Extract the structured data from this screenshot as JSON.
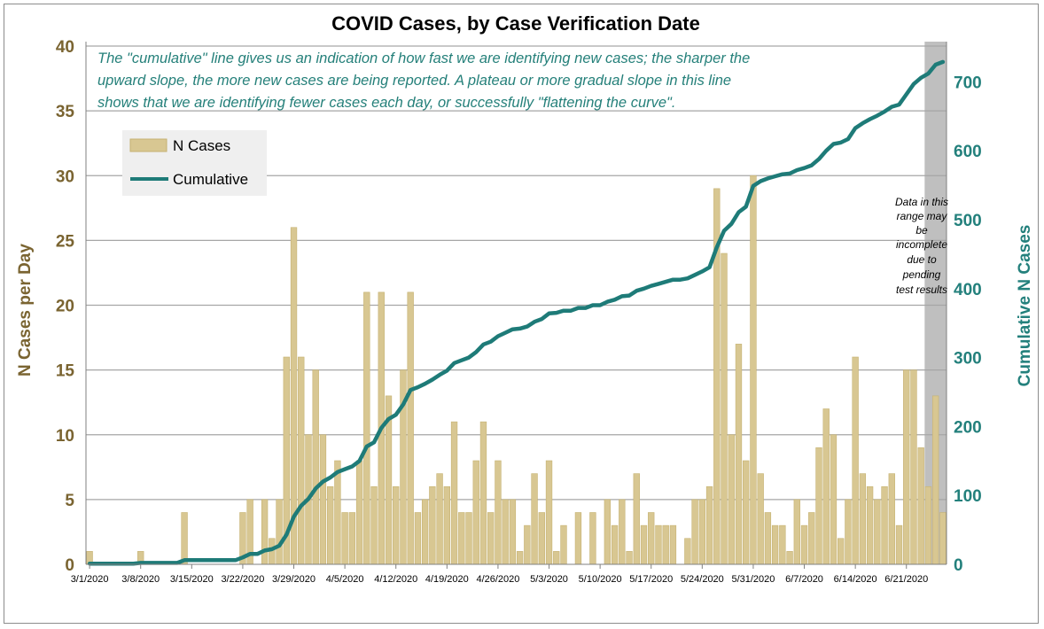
{
  "chart_data": {
    "type": "bar+line",
    "title": "COVID Cases, by Case Verification Date",
    "ylabel": "N Cases per Day",
    "y2label": "Cumulative N Cases",
    "xlabel": "",
    "ylim": [
      0,
      40
    ],
    "y2lim": [
      0,
      752
    ],
    "yticks": [
      "0",
      "5",
      "10",
      "15",
      "20",
      "25",
      "30",
      "35",
      "40"
    ],
    "y2ticks": [
      "0",
      "100",
      "200",
      "300",
      "400",
      "500",
      "600",
      "700"
    ],
    "xticks": [
      "3/1/2020",
      "3/8/2020",
      "3/15/2020",
      "3/22/2020",
      "3/29/2020",
      "4/5/2020",
      "4/12/2020",
      "4/19/2020",
      "4/26/2020",
      "5/3/2020",
      "5/10/2020",
      "5/17/2020",
      "5/24/2020",
      "5/31/2020",
      "6/7/2020",
      "6/14/2020",
      "6/21/2020"
    ],
    "grid": "horizontal",
    "legend_position": "top-left",
    "legend": [
      "N Cases",
      "Cumulative"
    ],
    "annotation_lines": [
      "The \"cumulative\" line gives  us an indication of how fast we are identifying new cases; the sharper the",
      "upward slope, the more new cases are being reported. A plateau or more gradual slope in this line",
      "shows that we are identifying fewer cases each day, or successfully \"flattening the curve\"."
    ],
    "shaded_note_lines": [
      "Data in this",
      "range  may",
      "be",
      "incomplete",
      "due to",
      "pending",
      "test results"
    ],
    "shaded_start_day": 115,
    "series": [
      {
        "name": "N Cases",
        "type": "bar",
        "values": [
          1,
          0,
          0,
          0,
          0,
          0,
          0,
          1,
          0,
          0,
          0,
          0,
          0,
          4,
          0,
          0,
          0,
          0,
          0,
          0,
          0,
          4,
          5,
          0,
          5,
          2,
          5,
          16,
          26,
          16,
          10,
          15,
          10,
          6,
          8,
          4,
          4,
          8,
          21,
          6,
          21,
          13,
          6,
          15,
          21,
          4,
          5,
          6,
          7,
          6,
          11,
          4,
          4,
          8,
          11,
          4,
          8,
          5,
          5,
          1,
          3,
          7,
          4,
          8,
          1,
          3,
          0,
          4,
          0,
          4,
          0,
          5,
          3,
          5,
          1,
          7,
          3,
          4,
          3,
          3,
          3,
          0,
          2,
          5,
          5,
          6,
          29,
          24,
          10,
          17,
          8,
          30,
          7,
          4,
          3,
          3,
          1,
          5,
          3,
          4,
          9,
          12,
          10,
          2,
          5,
          16,
          7,
          6,
          5,
          6,
          7,
          3,
          15,
          15,
          9,
          6,
          13,
          4
        ]
      },
      {
        "name": "Cumulative",
        "type": "line",
        "color": "#1e7b78"
      }
    ]
  },
  "colors": {
    "bar_fill": "#d8c792",
    "bar_stroke": "#c6b272",
    "line": "#1e7b78",
    "left_axis_text": "#7a6431",
    "right_axis_text": "#23807c",
    "annotation_text": "#25807a",
    "grid": "#a6a6a6",
    "shade": "#bfbfbf"
  }
}
